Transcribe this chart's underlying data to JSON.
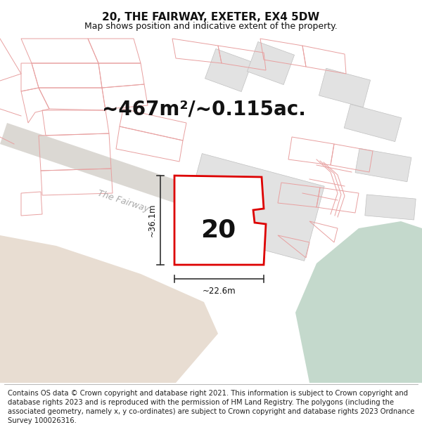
{
  "title": "20, THE FAIRWAY, EXETER, EX4 5DW",
  "subtitle": "Map shows position and indicative extent of the property.",
  "area_text": "~467m²/~0.115ac.",
  "label_number": "20",
  "dim_width": "~22.6m",
  "dim_height": "~36.1m",
  "road_label": "The Fairway",
  "footer": "Contains OS data © Crown copyright and database right 2021. This information is subject to Crown copyright and database rights 2023 and is reproduced with the permission of HM Land Registry. The polygons (including the associated geometry, namely x, y co-ordinates) are subject to Crown copyright and database rights 2023 Ordnance Survey 100026316.",
  "map_bg": "#f8f6f3",
  "red_color": "#dd0000",
  "light_red": "#e8a0a0",
  "light_green": "#c4d9cc",
  "gray_fill": "#e2e2e2",
  "beige_fill": "#e8ddd2",
  "road_fill": "#dbd8d3",
  "title_fontsize": 11,
  "subtitle_fontsize": 9,
  "area_fontsize": 20,
  "label_fontsize": 26,
  "footer_fontsize": 7.2,
  "road_label_fontsize": 9
}
